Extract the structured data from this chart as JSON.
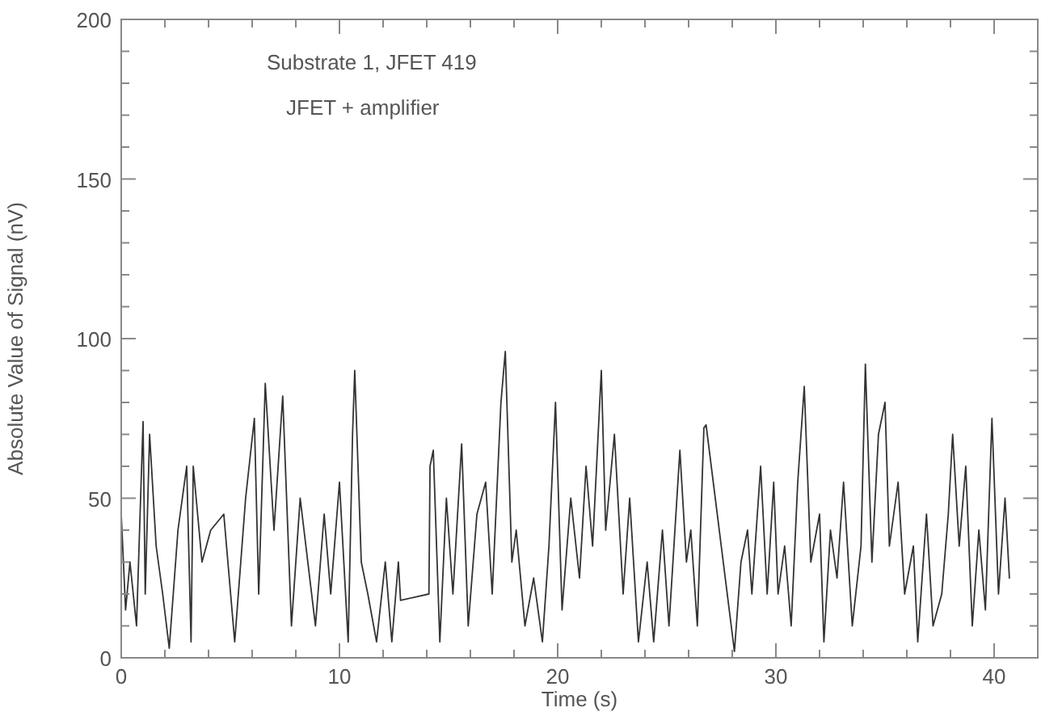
{
  "chart_data": {
    "type": "line",
    "xlabel": "Time (s)",
    "ylabel": "Absolute Value of Signal (nV)",
    "annotations": [
      "Substrate 1, JFET 419",
      "JFET + amplifier"
    ],
    "xlim": [
      0,
      42
    ],
    "xticks": [
      0,
      {
        "value": 2,
        "label": null
      },
      {
        "value": 4,
        "label": null
      },
      {
        "value": 6,
        "label": null
      },
      {
        "value": 8,
        "label": null
      },
      10,
      {
        "value": 12,
        "label": null
      },
      {
        "value": 14,
        "label": null
      },
      {
        "value": 16,
        "label": null
      },
      {
        "value": 18,
        "label": null
      },
      20,
      {
        "value": 22,
        "label": null
      },
      {
        "value": 24,
        "label": null
      },
      {
        "value": 26,
        "label": null
      },
      {
        "value": 28,
        "label": null
      },
      30,
      {
        "value": 32,
        "label": null
      },
      {
        "value": 34,
        "label": null
      },
      {
        "value": 36,
        "label": null
      },
      {
        "value": 38,
        "label": null
      },
      40
    ],
    "ylim": [
      0,
      200
    ],
    "yticks": [
      0,
      {
        "value": 10,
        "label": null
      },
      {
        "value": 20,
        "label": null
      },
      {
        "value": 30,
        "label": null
      },
      {
        "value": 40,
        "label": null
      },
      50,
      {
        "value": 60,
        "label": null
      },
      {
        "value": 70,
        "label": null
      },
      {
        "value": 80,
        "label": null
      },
      {
        "value": 90,
        "label": null
      },
      100,
      {
        "value": 110,
        "label": null
      },
      {
        "value": 120,
        "label": null
      },
      {
        "value": 130,
        "label": null
      },
      {
        "value": 140,
        "label": null
      },
      150,
      {
        "value": 160,
        "label": null
      },
      {
        "value": 170,
        "label": null
      },
      {
        "value": 180,
        "label": null
      },
      {
        "value": 190,
        "label": null
      },
      200
    ],
    "grid": false,
    "marker": "none",
    "line_style": "solid",
    "series": [
      {
        "color": "#333333",
        "x": [
          0,
          0.2,
          0.4,
          0.7,
          1.0,
          1.1,
          1.3,
          1.6,
          1.9,
          2.2,
          2.6,
          3.0,
          3.2,
          3.3,
          3.7,
          4.1,
          4.7,
          5.2,
          5.7,
          6.1,
          6.3,
          6.6,
          7.0,
          7.4,
          7.8,
          8.2,
          8.9,
          9.3,
          9.6,
          10.0,
          10.4,
          10.6,
          10.7,
          11.0,
          11.3,
          11.7,
          12.1,
          12.4,
          12.7,
          12.8,
          14.1,
          14.15,
          14.3,
          14.6,
          14.9,
          15.2,
          15.6,
          15.9,
          16.3,
          16.7,
          17.0,
          17.4,
          17.6,
          17.9,
          18.1,
          18.5,
          18.9,
          19.3,
          19.6,
          19.9,
          20.2,
          20.6,
          21.0,
          21.3,
          21.6,
          22.0,
          22.2,
          22.6,
          23.0,
          23.3,
          23.7,
          24.1,
          24.4,
          24.8,
          25.1,
          25.6,
          25.9,
          26.1,
          26.4,
          26.7,
          26.8,
          28.1,
          28.4,
          28.7,
          28.9,
          29.3,
          29.6,
          29.9,
          30.1,
          30.4,
          30.7,
          31.0,
          31.3,
          31.6,
          32.0,
          32.2,
          32.5,
          32.8,
          33.1,
          33.5,
          33.9,
          34.1,
          34.4,
          34.7,
          35.0,
          35.2,
          35.6,
          35.9,
          36.3,
          36.5,
          36.9,
          37.2,
          37.6,
          37.9,
          38.1,
          38.4,
          38.7,
          39.0,
          39.3,
          39.6,
          39.9,
          40.2,
          40.5,
          40.7
        ],
        "values": [
          45,
          15,
          30,
          10,
          74,
          20,
          70,
          35,
          20,
          3,
          40,
          60,
          5,
          60,
          30,
          40,
          45,
          5,
          50,
          75,
          20,
          86,
          40,
          82,
          10,
          50,
          10,
          45,
          20,
          55,
          5,
          70,
          90,
          30,
          20,
          5,
          30,
          5,
          30,
          18,
          20,
          60,
          65,
          5,
          50,
          20,
          67,
          10,
          45,
          55,
          20,
          80,
          96,
          30,
          40,
          10,
          25,
          5,
          35,
          80,
          15,
          50,
          25,
          60,
          35,
          90,
          40,
          70,
          20,
          50,
          5,
          30,
          5,
          40,
          10,
          65,
          30,
          40,
          10,
          72,
          73,
          2,
          30,
          40,
          20,
          60,
          20,
          55,
          20,
          35,
          10,
          55,
          85,
          30,
          45,
          5,
          40,
          25,
          55,
          10,
          35,
          92,
          30,
          70,
          80,
          35,
          55,
          20,
          35,
          5,
          45,
          10,
          20,
          45,
          70,
          35,
          60,
          10,
          40,
          15,
          75,
          20,
          50,
          25
        ]
      }
    ]
  }
}
